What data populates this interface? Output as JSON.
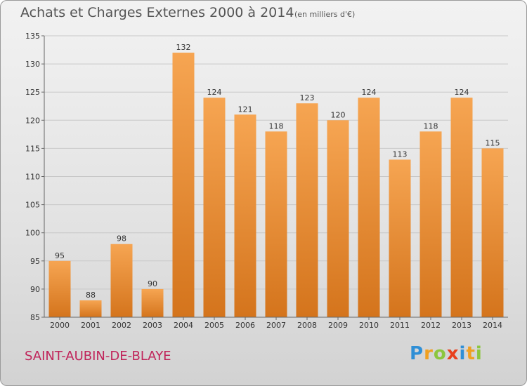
{
  "header": {
    "title": "Achats et Charges Externes 2000 à 2014",
    "subtitle": "(en milliers d'€)"
  },
  "footer": {
    "place": "SAINT-AUBIN-DE-BLAYE",
    "logo_letters": [
      "P",
      "r",
      "o",
      "x",
      "i",
      "t",
      "i"
    ],
    "logo_colors": [
      "#2f8fd6",
      "#f0a020",
      "#8cc63e",
      "#e8401c",
      "#2f8fd6",
      "#f0a020",
      "#8cc63e"
    ]
  },
  "colors": {
    "bar_light": "#f6a552",
    "bar_dark": "#d4741c",
    "grid": "#c8c8c8",
    "axis": "#666666"
  },
  "chart_data": {
    "type": "bar",
    "title": "Achats et Charges Externes 2000 à 2014",
    "subtitle": "(en milliers d'€)",
    "categories": [
      "2000",
      "2001",
      "2002",
      "2003",
      "2004",
      "2005",
      "2006",
      "2007",
      "2008",
      "2009",
      "2010",
      "2011",
      "2012",
      "2013",
      "2014"
    ],
    "values": [
      95,
      88,
      98,
      90,
      132,
      124,
      121,
      118,
      123,
      120,
      124,
      113,
      118,
      124,
      115
    ],
    "ylim": [
      85,
      135
    ],
    "yticks": [
      85,
      90,
      95,
      100,
      105,
      110,
      115,
      120,
      125,
      130,
      135
    ],
    "grid": true
  }
}
